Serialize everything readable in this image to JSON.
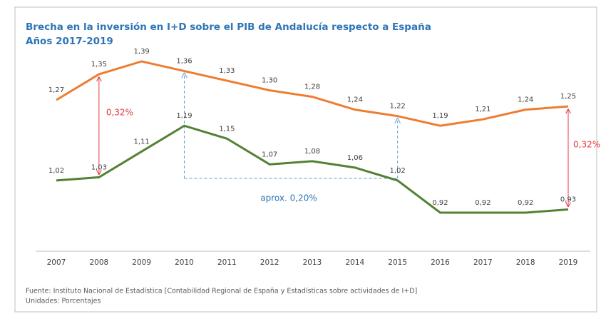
{
  "chart_data": {
    "type": "line",
    "title": "Brecha en la inversión en I+D sobre el PIB de Andalucía respecto a España",
    "subtitle": "Años 2017-2019",
    "categories": [
      "2007",
      "2008",
      "2009",
      "2010",
      "2011",
      "2012",
      "2013",
      "2014",
      "2015",
      "2016",
      "2017",
      "2018",
      "2019"
    ],
    "series": [
      {
        "color": "#ed7d31",
        "values": [
          1.27,
          1.35,
          1.39,
          1.36,
          1.33,
          1.3,
          1.28,
          1.24,
          1.22,
          1.19,
          1.21,
          1.24,
          1.25
        ],
        "value_labels": [
          "1,27",
          "1,35",
          "1,39",
          "1,36",
          "1,33",
          "1,30",
          "1,28",
          "1,24",
          "1,22",
          "1,19",
          "1,21",
          "1,24",
          "1,25"
        ]
      },
      {
        "color": "#538135",
        "values": [
          1.02,
          1.03,
          1.11,
          1.19,
          1.15,
          1.07,
          1.08,
          1.06,
          1.02,
          0.92,
          0.92,
          0.92,
          0.93
        ],
        "value_labels": [
          "1,02",
          "1,03",
          "1,11",
          "1,19",
          "1,15",
          "1,07",
          "1,08",
          "1,06",
          "1,02",
          "0,92",
          "0,92",
          "0,92",
          "0,93"
        ]
      }
    ],
    "annotations": [
      "0,32%",
      "0,32%",
      "aprox. 0,20%"
    ],
    "source": "Fuente: Instituto Nacional de Estadística [Contabilidad Regional de España y Estadísticas sobre actividades de I+D]",
    "units": "Unidades: Porcentajes"
  }
}
